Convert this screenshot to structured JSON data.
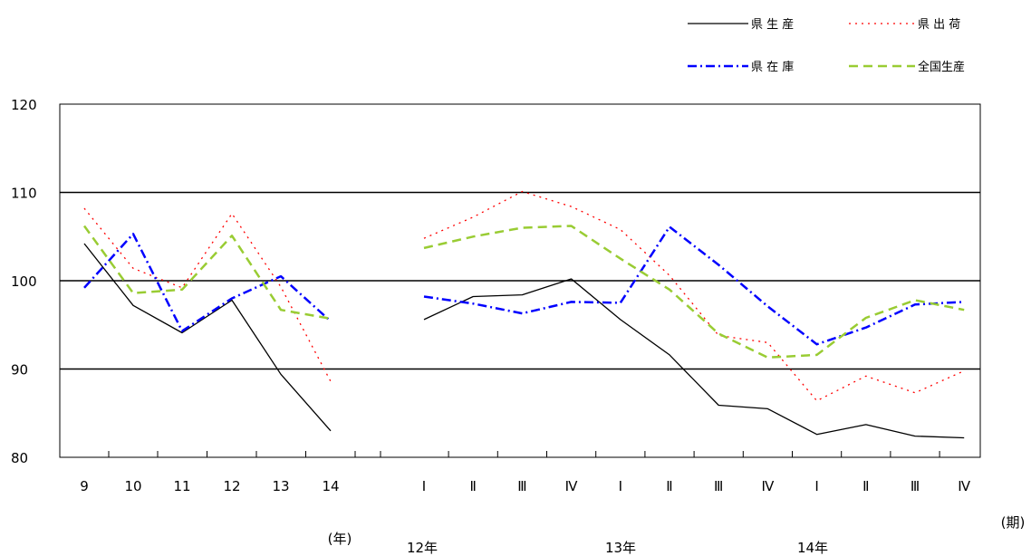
{
  "chart_data": {
    "type": "line",
    "ylim": [
      80,
      120
    ],
    "y_ticks": [
      80,
      90,
      100,
      110,
      120
    ],
    "grid": "horizontal",
    "legend_position": "top-right",
    "x_tick_labels": [
      "9",
      "10",
      "11",
      "12",
      "13",
      "14",
      "Ⅰ",
      "Ⅱ",
      "Ⅲ",
      "Ⅳ",
      "Ⅰ",
      "Ⅱ",
      "Ⅲ",
      "Ⅳ",
      "Ⅰ",
      "Ⅱ",
      "Ⅲ",
      "Ⅳ"
    ],
    "annual_unit_label": "(年)",
    "quarter_unit_label": "(期)",
    "year_group_labels": [
      "12年",
      "13年",
      "14年"
    ],
    "annual": {
      "x": [
        "9",
        "10",
        "11",
        "12",
        "13",
        "14"
      ],
      "series": [
        {
          "name": "県 生 産",
          "values": [
            104.2,
            97.2,
            94.1,
            97.8,
            89.4,
            83.0
          ]
        },
        {
          "name": "県 出 荷",
          "values": [
            108.2,
            101.4,
            99.2,
            107.6,
            99.3,
            88.6
          ]
        },
        {
          "name": "県 在 庫",
          "values": [
            99.2,
            105.3,
            94.3,
            98.0,
            100.5,
            95.4
          ]
        },
        {
          "name": "全国生産",
          "values": [
            106.2,
            98.6,
            99.0,
            105.1,
            96.7,
            95.7
          ]
        }
      ]
    },
    "quarterly": {
      "x": [
        "12年 Ⅰ",
        "12年 Ⅱ",
        "12年 Ⅲ",
        "12年 Ⅳ",
        "13年 Ⅰ",
        "13年 Ⅱ",
        "13年 Ⅲ",
        "13年 Ⅳ",
        "14年 Ⅰ",
        "14年 Ⅱ",
        "14年 Ⅲ",
        "14年 Ⅳ"
      ],
      "series": [
        {
          "name": "県 生 産",
          "values": [
            95.6,
            98.2,
            98.4,
            100.2,
            95.6,
            91.6,
            85.9,
            85.5,
            82.6,
            83.7,
            82.4,
            82.2
          ]
        },
        {
          "name": "県 出 荷",
          "values": [
            104.8,
            107.2,
            110.1,
            108.4,
            105.8,
            100.6,
            93.8,
            93.0,
            86.4,
            89.2,
            87.3,
            89.8
          ]
        },
        {
          "name": "県 在 庫",
          "values": [
            98.2,
            97.4,
            96.3,
            97.6,
            97.5,
            106.1,
            101.8,
            97.1,
            92.8,
            94.7,
            97.3,
            97.6
          ]
        },
        {
          "name": "全国生産",
          "values": [
            103.7,
            105.0,
            106.0,
            106.2,
            102.5,
            99.0,
            94.0,
            91.3,
            91.6,
            95.8,
            97.8,
            96.7
          ]
        }
      ]
    },
    "series_styles": [
      {
        "name": "県 生 産",
        "color": "#000000",
        "dash": "solid"
      },
      {
        "name": "県 出 荷",
        "color": "#ff0000",
        "dash": "dotted"
      },
      {
        "name": "県 在 庫",
        "color": "#0000ff",
        "dash": "dash-dot"
      },
      {
        "name": "全国生産",
        "color": "#99cc33",
        "dash": "dashed"
      }
    ]
  }
}
